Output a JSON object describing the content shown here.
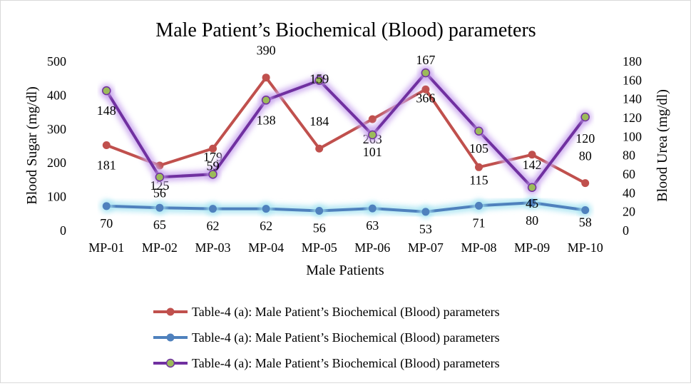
{
  "chart_data": {
    "type": "line",
    "title": "Male Patient’s Biochemical (Blood) parameters",
    "xlabel": "Male Patients",
    "ylabel": "Blood Sugar (mg/dl)",
    "y2label": "Blood Urea (mg/dl)",
    "categories": [
      "MP-01",
      "MP-02",
      "MP-03",
      "MP-04",
      "MP-05",
      "MP-06",
      "MP-07",
      "MP-08",
      "MP-09",
      "MP-10"
    ],
    "ylim": [
      0,
      500
    ],
    "yticks": [
      0,
      100,
      200,
      300,
      400,
      500
    ],
    "y2lim": [
      0,
      180
    ],
    "y2ticks": [
      0,
      20,
      40,
      60,
      80,
      100,
      120,
      140,
      160,
      180
    ],
    "grid": false,
    "legend_position": "bottom",
    "series": [
      {
        "name": "Table-4 (a): Male Patient’s Biochemical (Blood) parameters",
        "axis": "left",
        "color": "#c0504d",
        "marker_fill": "#c0504d",
        "glow": false,
        "values": [
          250,
          190,
          240,
          450,
          240,
          327,
          415,
          185,
          222,
          138
        ],
        "labels": [
          "181",
          "125",
          "179",
          "390",
          "184",
          "263",
          "366",
          "115",
          "142",
          "80"
        ]
      },
      {
        "name": "Table-4 (a): Male Patient’s Biochemical (Blood) parameters",
        "axis": "left",
        "color": "#4f81bd",
        "marker_fill": "#4f81bd",
        "glow": true,
        "glow_color": "#a8e4f2",
        "values": [
          70,
          65,
          62,
          62,
          56,
          63,
          53,
          71,
          80,
          58
        ],
        "labels": [
          "70",
          "65",
          "62",
          "62",
          "56",
          "63",
          "53",
          "71",
          "80",
          "58"
        ]
      },
      {
        "name": "Table-4 (a): Male Patient’s Biochemical (Blood) parameters",
        "axis": "right",
        "color": "#7030a0",
        "marker_fill": "#9bbb59",
        "glow": true,
        "glow_color": "#c9a6ee",
        "values": [
          148,
          56,
          59,
          138,
          159,
          101,
          167,
          105,
          45,
          120
        ],
        "labels": [
          "148",
          "56",
          "59",
          "138",
          "159",
          "101",
          "167",
          "105",
          "45",
          "120"
        ]
      }
    ]
  }
}
